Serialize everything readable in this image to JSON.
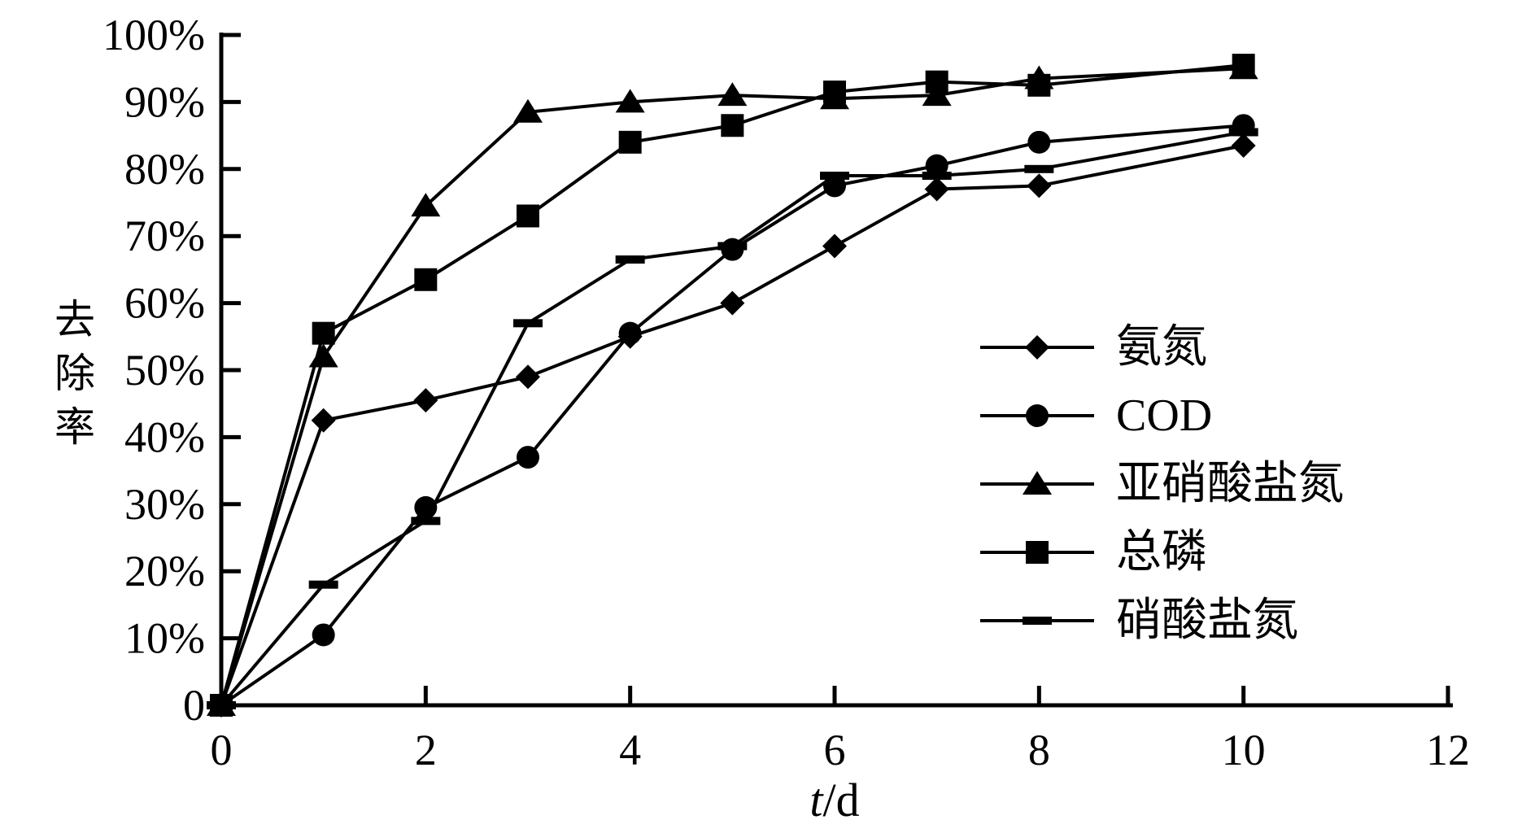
{
  "chart_data": {
    "type": "line",
    "title": "",
    "xlabel": "t/d",
    "ylabel": "去除率",
    "xlim": [
      0,
      12
    ],
    "ylim": [
      0,
      100
    ],
    "grid": false,
    "legend_position": "right-middle",
    "x_ticks": [
      0,
      2,
      4,
      6,
      8,
      10,
      12
    ],
    "x_tick_labels": [
      "0",
      "2",
      "4",
      "6",
      "8",
      "10",
      "12"
    ],
    "y_ticks": [
      0,
      10,
      20,
      30,
      40,
      50,
      60,
      70,
      80,
      90,
      100
    ],
    "y_tick_labels": [
      "0",
      "10%",
      "20%",
      "30%",
      "40%",
      "50%",
      "60%",
      "70%",
      "80%",
      "90%",
      "100%"
    ],
    "x": [
      0,
      1,
      2,
      3,
      4,
      5,
      6,
      7,
      8,
      10
    ],
    "series": [
      {
        "name": "氨氮",
        "marker": "diamond",
        "values": [
          0,
          42.5,
          45.5,
          49,
          55,
          60,
          68.5,
          77,
          77.5,
          83.5
        ]
      },
      {
        "name": "COD",
        "marker": "circle",
        "values": [
          0,
          10.5,
          29.5,
          37,
          55.5,
          68,
          77.5,
          80.5,
          84,
          86.5
        ]
      },
      {
        "name": "亚硝酸盐氮",
        "marker": "triangle",
        "values": [
          0,
          52,
          74.5,
          88.5,
          90,
          91,
          90.5,
          91,
          93.5,
          95
        ]
      },
      {
        "name": "总磷",
        "marker": "square",
        "values": [
          0,
          55.5,
          63.5,
          73,
          84,
          86.5,
          91.5,
          93,
          92.5,
          95.5
        ]
      },
      {
        "name": "硝酸盐氮",
        "marker": "dash",
        "values": [
          0,
          18,
          27.5,
          57,
          66.5,
          68.5,
          79,
          79,
          80,
          85.5
        ]
      }
    ],
    "colors": {
      "foreground": "#000000",
      "background": "#ffffff"
    }
  }
}
